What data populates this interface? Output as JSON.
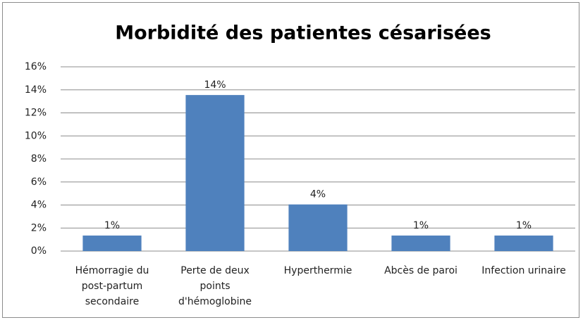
{
  "chart_data": {
    "type": "bar",
    "title": "Morbidité des patientes césarisées",
    "categories": [
      "Hémorragie du post-partum secondaire",
      "Perte de deux points d'hémoglobine",
      "Hyperthermie",
      "Abcès de paroi",
      "Infection urinaire"
    ],
    "values": [
      1.35,
      13.55,
      4.05,
      1.35,
      1.35
    ],
    "value_labels": [
      "1%",
      "14%",
      "4%",
      "1%",
      "1%"
    ],
    "color": "#4f81bd",
    "ylim": [
      0,
      16
    ],
    "yticks": [
      {
        "value": 0,
        "label": "0%"
      },
      {
        "value": 2,
        "label": "2%"
      },
      {
        "value": 4,
        "label": "4%"
      },
      {
        "value": 6,
        "label": "6%"
      },
      {
        "value": 8,
        "label": "8%"
      },
      {
        "value": 10,
        "label": "10%"
      },
      {
        "value": 12,
        "label": "12%"
      },
      {
        "value": 14,
        "label": "14%"
      },
      {
        "value": 16,
        "label": "16%"
      }
    ],
    "grid": true
  }
}
